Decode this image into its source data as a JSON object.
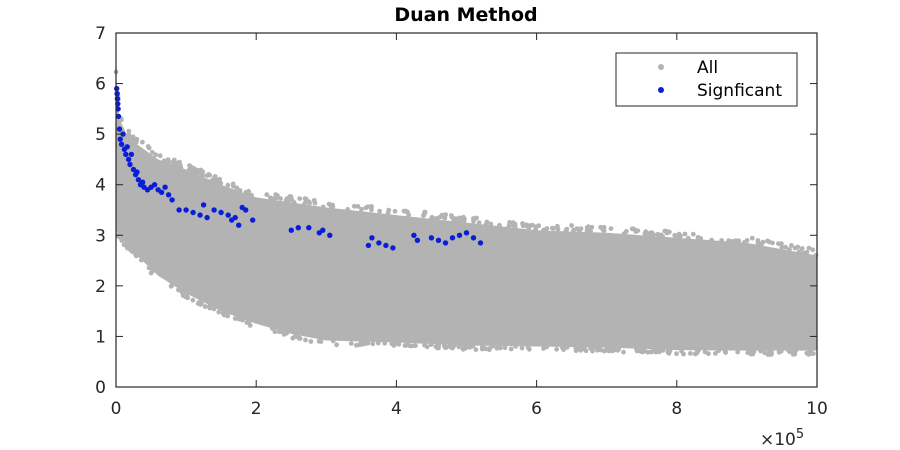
{
  "chart_data": {
    "type": "scatter",
    "title": "Duan Method",
    "xlabel": "",
    "ylabel": "",
    "xlim": [
      0,
      1000000
    ],
    "ylim": [
      0,
      7
    ],
    "x_ticks": [
      0,
      200000,
      400000,
      600000,
      800000,
      1000000
    ],
    "x_tick_labels": [
      "0",
      "2",
      "4",
      "6",
      "8",
      "10"
    ],
    "x_exponent_label": {
      "base": "×10",
      "exponent": "5"
    },
    "y_ticks": [
      0,
      1,
      2,
      3,
      4,
      5,
      6,
      7
    ],
    "y_tick_labels": [
      "0",
      "1",
      "2",
      "3",
      "4",
      "5",
      "6",
      "7"
    ],
    "grid": false,
    "legend_position": "top-right",
    "series": [
      {
        "name": "All",
        "color": "#b3b3b3",
        "style": "dense point cloud",
        "upper_envelope": [
          [
            0,
            6.2
          ],
          [
            5000,
            5.3
          ],
          [
            15000,
            5.0
          ],
          [
            30000,
            4.8
          ],
          [
            60000,
            4.5
          ],
          [
            100000,
            4.3
          ],
          [
            150000,
            4.0
          ],
          [
            200000,
            3.75
          ],
          [
            300000,
            3.55
          ],
          [
            400000,
            3.4
          ],
          [
            500000,
            3.25
          ],
          [
            600000,
            3.1
          ],
          [
            700000,
            3.05
          ],
          [
            800000,
            2.95
          ],
          [
            900000,
            2.85
          ],
          [
            1000000,
            2.6
          ]
        ],
        "lower_envelope": [
          [
            0,
            3.1
          ],
          [
            10000,
            2.9
          ],
          [
            30000,
            2.6
          ],
          [
            60000,
            2.2
          ],
          [
            100000,
            1.85
          ],
          [
            150000,
            1.5
          ],
          [
            200000,
            1.25
          ],
          [
            250000,
            1.05
          ],
          [
            300000,
            0.92
          ],
          [
            400000,
            0.88
          ],
          [
            500000,
            0.82
          ],
          [
            600000,
            0.8
          ],
          [
            700000,
            0.78
          ],
          [
            800000,
            0.73
          ],
          [
            900000,
            0.72
          ],
          [
            1000000,
            0.72
          ]
        ]
      },
      {
        "name": "Signficant",
        "color": "#0a1ed8",
        "x": [
          1000,
          1500,
          2000,
          2500,
          3000,
          3500,
          5000,
          6000,
          8000,
          10000,
          12000,
          14000,
          16000,
          18000,
          20000,
          22000,
          25000,
          28000,
          30000,
          32000,
          35000,
          38000,
          40000,
          45000,
          50000,
          55000,
          60000,
          65000,
          70000,
          75000,
          80000,
          90000,
          100000,
          110000,
          120000,
          125000,
          130000,
          140000,
          150000,
          160000,
          165000,
          170000,
          175000,
          180000,
          185000,
          195000,
          250000,
          260000,
          275000,
          290000,
          295000,
          305000,
          360000,
          365000,
          375000,
          385000,
          395000,
          425000,
          430000,
          450000,
          460000,
          470000,
          480000,
          490000,
          500000,
          510000,
          520000
        ],
        "y": [
          5.9,
          5.8,
          5.7,
          5.6,
          5.5,
          5.35,
          5.1,
          4.9,
          4.8,
          5.0,
          4.7,
          4.6,
          4.75,
          4.5,
          4.4,
          4.6,
          4.3,
          4.2,
          4.25,
          4.1,
          4.0,
          4.05,
          3.95,
          3.9,
          3.95,
          4.0,
          3.9,
          3.85,
          3.95,
          3.8,
          3.7,
          3.5,
          3.5,
          3.45,
          3.4,
          3.6,
          3.35,
          3.5,
          3.45,
          3.4,
          3.3,
          3.35,
          3.2,
          3.55,
          3.5,
          3.3,
          3.1,
          3.15,
          3.15,
          3.05,
          3.1,
          3.0,
          2.8,
          2.95,
          2.85,
          2.8,
          2.75,
          3.0,
          2.9,
          2.95,
          2.9,
          2.85,
          2.95,
          3.0,
          3.05,
          2.95,
          2.85
        ]
      }
    ]
  }
}
